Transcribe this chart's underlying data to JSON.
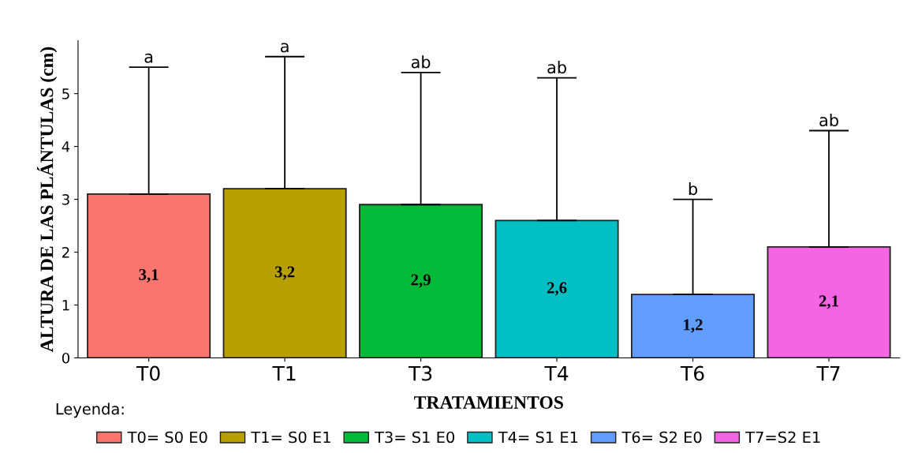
{
  "chart_data": {
    "type": "bar",
    "xlabel": "TRATAMIENTOS",
    "ylabel": "ALTURA DE LAS PLÁNTULAS (cm)",
    "legend_title": "Leyenda:",
    "categories": [
      "T0",
      "T1",
      "T3",
      "T4",
      "T6",
      "T7"
    ],
    "series": [
      {
        "name": "T0= S0 E0",
        "color": "#f8766d",
        "values": [
          3.1,
          null,
          null,
          null,
          null,
          null
        ],
        "errors": [
          [
            3.1,
            5.5
          ],
          null,
          null,
          null,
          null,
          null
        ],
        "value_labels": [
          "3,1",
          null,
          null,
          null,
          null,
          null
        ]
      },
      {
        "name": "T1= S0 E1",
        "color": "#b79f00",
        "values": [
          null,
          3.2,
          null,
          null,
          null,
          null
        ],
        "errors": [
          null,
          [
            3.2,
            5.7
          ],
          null,
          null,
          null,
          null
        ],
        "value_labels": [
          null,
          "3,2",
          null,
          null,
          null,
          null
        ]
      },
      {
        "name": "T3= S1 E0",
        "color": "#00ba38",
        "values": [
          null,
          null,
          2.9,
          null,
          null,
          null
        ],
        "errors": [
          null,
          null,
          [
            2.9,
            5.4
          ],
          null,
          null,
          null
        ],
        "value_labels": [
          null,
          null,
          "2,9",
          null,
          null,
          null
        ]
      },
      {
        "name": "T4= S1 E1",
        "color": "#00bfc4",
        "values": [
          null,
          null,
          null,
          2.6,
          null,
          null
        ],
        "errors": [
          null,
          null,
          null,
          [
            2.6,
            5.3
          ],
          null,
          null
        ],
        "value_labels": [
          null,
          null,
          null,
          "2,6",
          null,
          null
        ]
      },
      {
        "name": "T6= S2 E0",
        "color": "#619cff",
        "values": [
          null,
          null,
          null,
          null,
          1.2,
          null
        ],
        "errors": [
          null,
          null,
          null,
          null,
          [
            1.2,
            3.0
          ],
          null
        ],
        "value_labels": [
          null,
          null,
          null,
          null,
          "1,2",
          null
        ]
      },
      {
        "name": "T7=S2 E1",
        "color": "#f564e3",
        "values": [
          null,
          null,
          null,
          null,
          null,
          2.1
        ],
        "errors": [
          null,
          null,
          null,
          null,
          null,
          [
            2.1,
            4.3
          ]
        ],
        "value_labels": [
          null,
          null,
          null,
          null,
          null,
          "2,1"
        ]
      }
    ],
    "annotations": [
      "a",
      "a",
      "ab",
      "ab",
      "b",
      "ab"
    ],
    "ylim": [
      0,
      6
    ],
    "yticks": [
      0,
      1,
      2,
      3,
      4,
      5
    ],
    "grid": false,
    "legend": "bottom"
  }
}
